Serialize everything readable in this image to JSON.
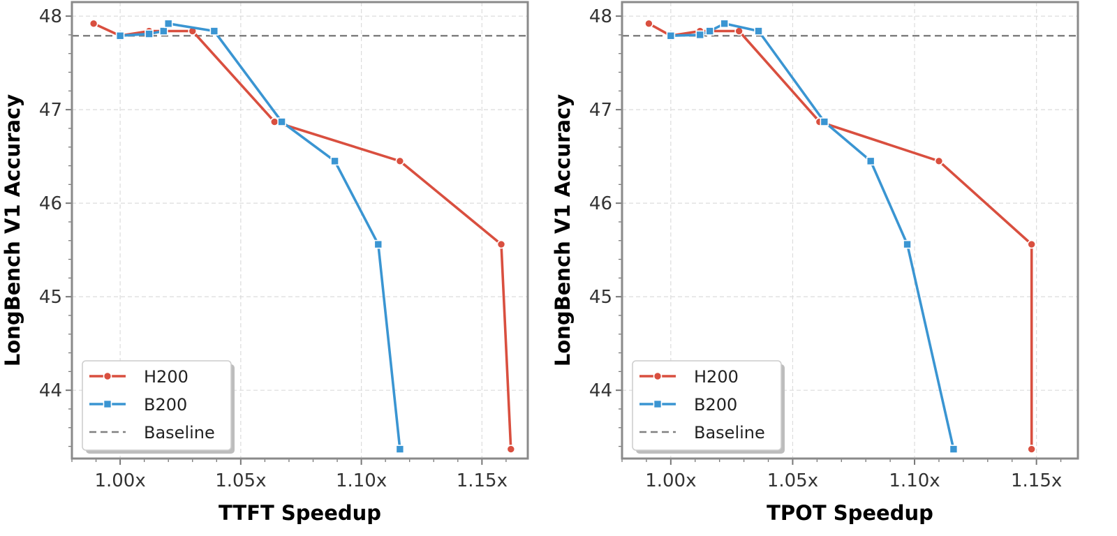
{
  "chart_data": [
    {
      "type": "line",
      "title": "",
      "xlabel": "TTFT Speedup",
      "ylabel": "LongBench V1 Accuracy",
      "xlim": [
        0.98,
        1.169
      ],
      "ylim": [
        43.27,
        48.15
      ],
      "x_ticks": [
        1.0,
        1.05,
        1.1,
        1.15
      ],
      "x_tick_labels": [
        "1.00x",
        "1.05x",
        "1.10x",
        "1.15x"
      ],
      "y_ticks": [
        44,
        45,
        46,
        47,
        48
      ],
      "y_tick_labels": [
        "44",
        "45",
        "46",
        "47",
        "48"
      ],
      "grid": true,
      "legend_position": "bottom-left",
      "baseline": 47.79,
      "series": [
        {
          "name": "H200",
          "color": "#d94f3f",
          "marker": "circle",
          "x": [
            0.989,
            1.0,
            1.012,
            1.03,
            1.064,
            1.116,
            1.158,
            1.162
          ],
          "y": [
            47.92,
            47.79,
            47.84,
            47.84,
            46.87,
            46.45,
            45.56,
            43.37
          ]
        },
        {
          "name": "B200",
          "color": "#3a95d2",
          "marker": "square",
          "x": [
            1.0,
            1.012,
            1.018,
            1.02,
            1.039,
            1.067,
            1.089,
            1.107,
            1.116
          ],
          "y": [
            47.79,
            47.81,
            47.84,
            47.92,
            47.84,
            46.87,
            46.45,
            45.56,
            43.37
          ]
        },
        {
          "name": "Baseline",
          "color": "#808080",
          "style": "dashed"
        }
      ]
    },
    {
      "type": "line",
      "title": "",
      "xlabel": "TPOT Speedup",
      "ylabel": "LongBench V1 Accuracy",
      "xlim": [
        0.98,
        1.167
      ],
      "ylim": [
        43.27,
        48.15
      ],
      "x_ticks": [
        1.0,
        1.05,
        1.1,
        1.15
      ],
      "x_tick_labels": [
        "1.00x",
        "1.05x",
        "1.10x",
        "1.15x"
      ],
      "y_ticks": [
        44,
        45,
        46,
        47,
        48
      ],
      "y_tick_labels": [
        "44",
        "45",
        "46",
        "47",
        "48"
      ],
      "grid": true,
      "legend_position": "bottom-left",
      "baseline": 47.79,
      "series": [
        {
          "name": "H200",
          "color": "#d94f3f",
          "marker": "circle",
          "x": [
            0.991,
            1.0,
            1.012,
            1.028,
            1.061,
            1.11,
            1.148,
            1.148
          ],
          "y": [
            47.92,
            47.79,
            47.84,
            47.84,
            46.87,
            46.45,
            45.56,
            43.37
          ]
        },
        {
          "name": "B200",
          "color": "#3a95d2",
          "marker": "square",
          "x": [
            1.0,
            1.012,
            1.016,
            1.022,
            1.036,
            1.063,
            1.082,
            1.097,
            1.116
          ],
          "y": [
            47.79,
            47.8,
            47.84,
            47.92,
            47.84,
            46.87,
            46.45,
            45.56,
            43.37
          ]
        },
        {
          "name": "Baseline",
          "color": "#808080",
          "style": "dashed"
        }
      ]
    }
  ]
}
